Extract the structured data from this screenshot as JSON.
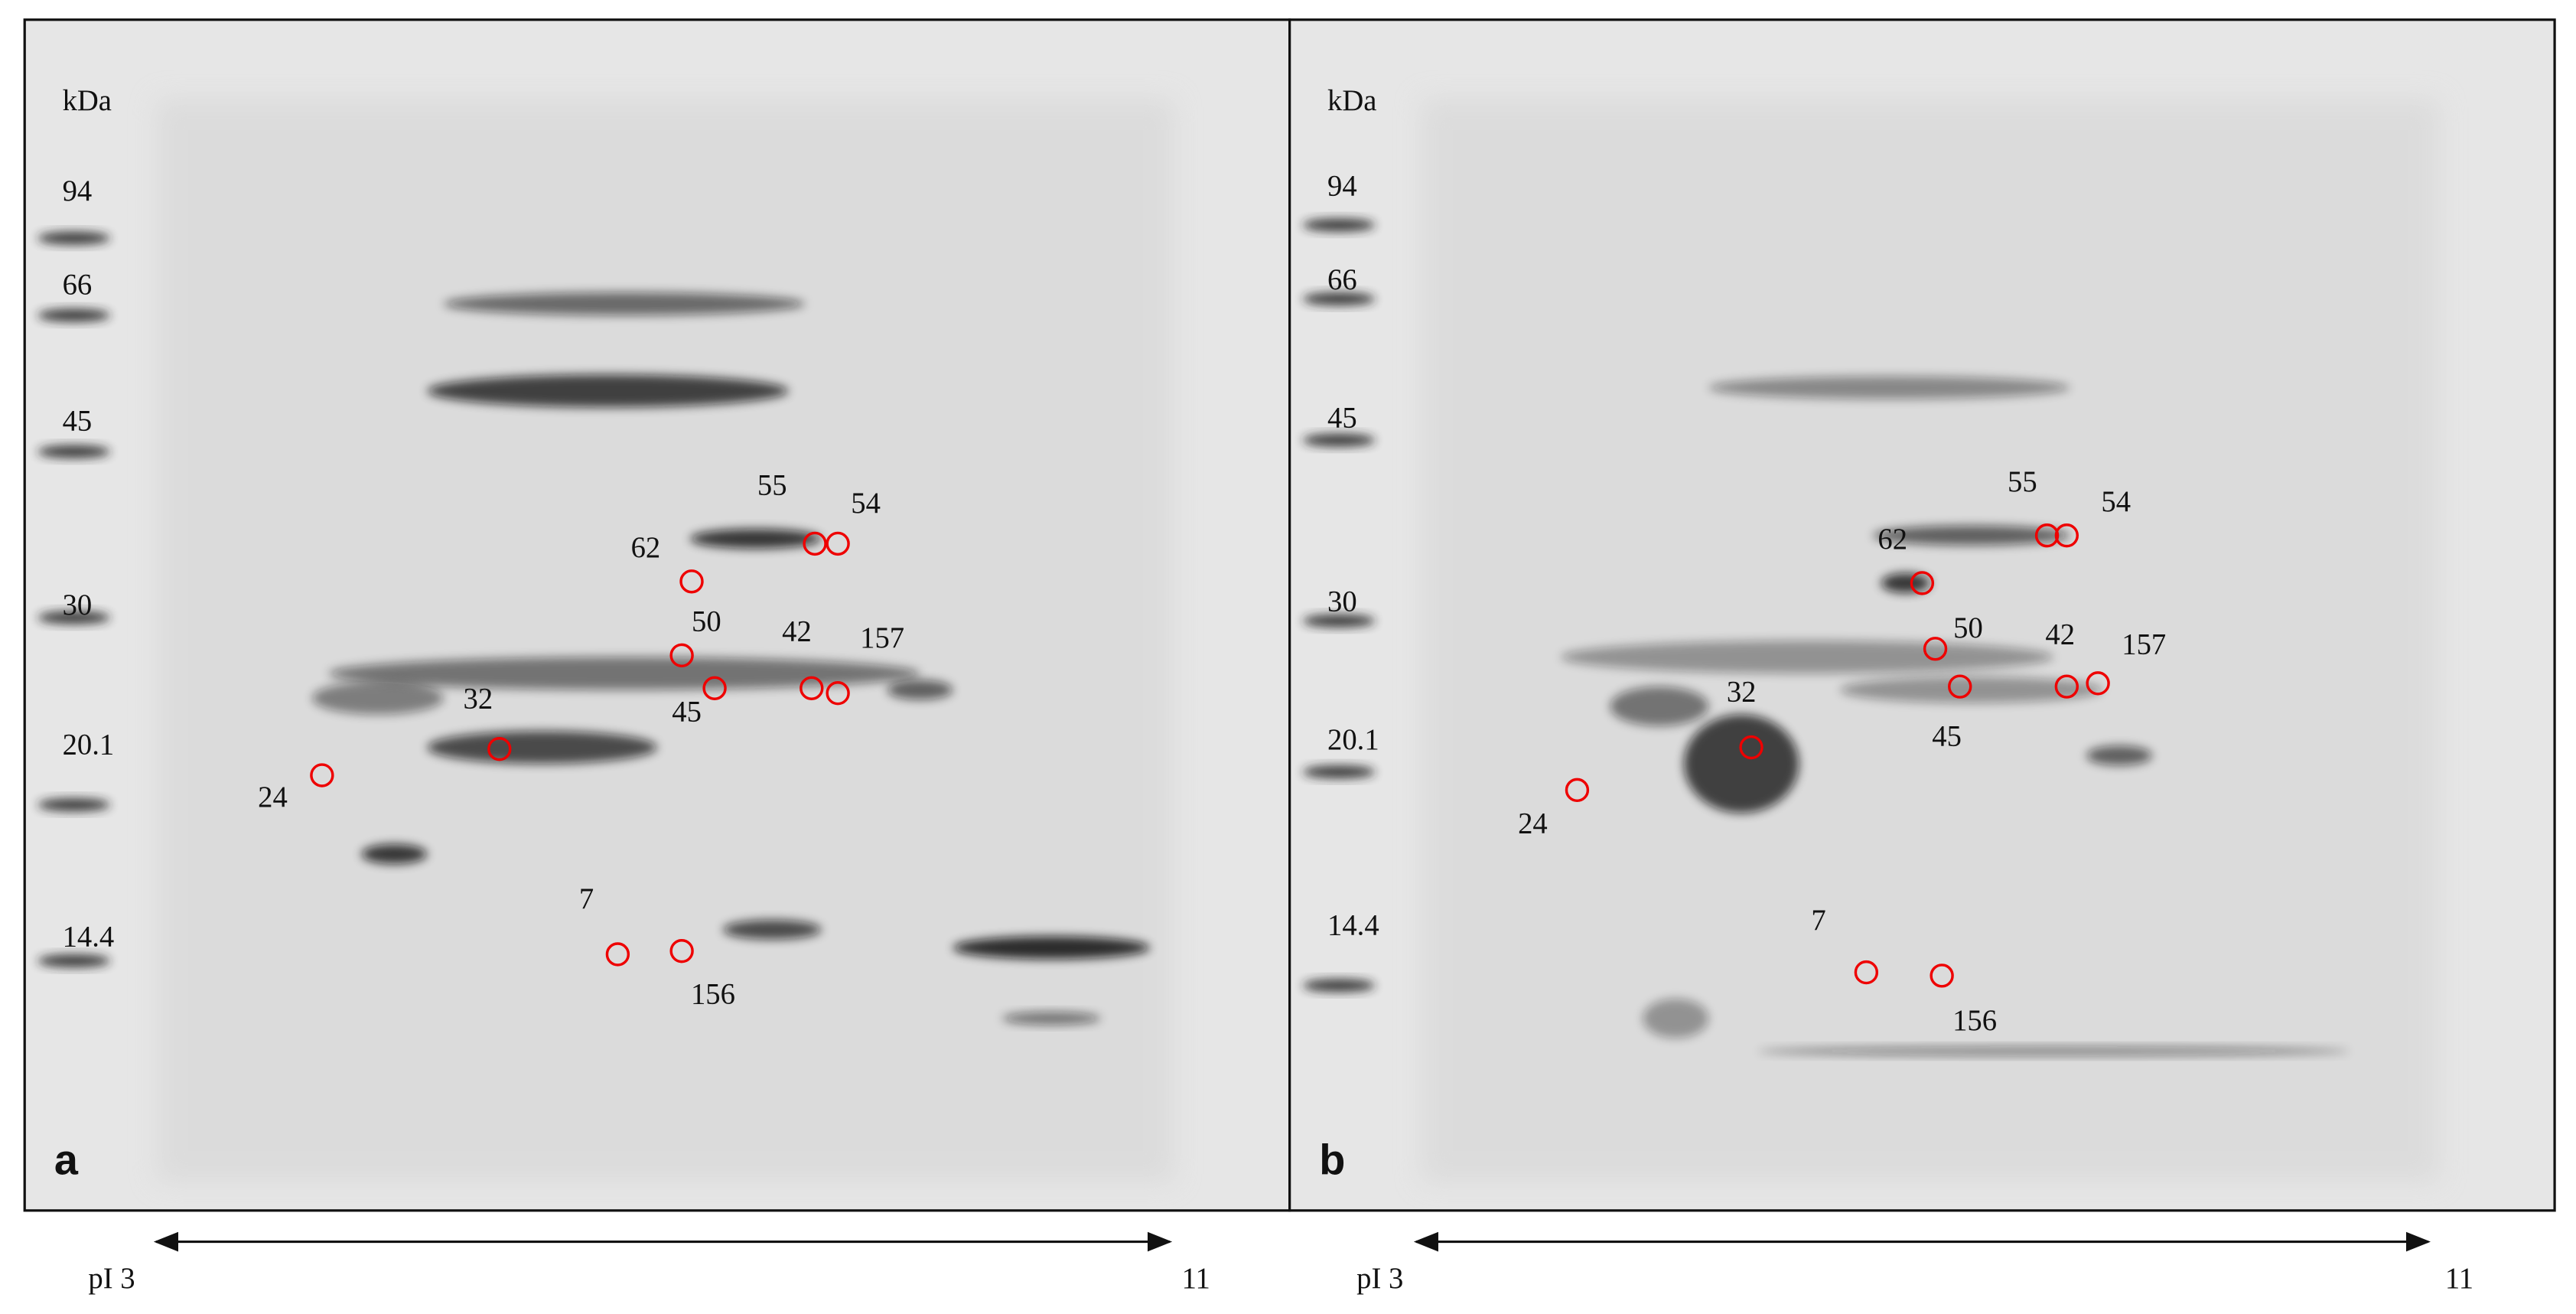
{
  "panels": [
    {
      "letter": "a",
      "unit": "kDa",
      "markers": [
        "94",
        "66",
        "45",
        "30",
        "20.1",
        "14.4"
      ],
      "spots": [
        "55",
        "54",
        "62",
        "50",
        "42",
        "157",
        "45",
        "32",
        "24",
        "7",
        "156"
      ],
      "ph_axis": {
        "start": "pI 3",
        "end": "11"
      }
    },
    {
      "letter": "b",
      "unit": "kDa",
      "markers": [
        "94",
        "66",
        "45",
        "30",
        "20.1",
        "14.4"
      ],
      "spots": [
        "55",
        "54",
        "62",
        "50",
        "42",
        "157",
        "45",
        "32",
        "24",
        "7",
        "156"
      ],
      "ph_axis": {
        "start": "pI 3",
        "end": "11"
      }
    }
  ]
}
